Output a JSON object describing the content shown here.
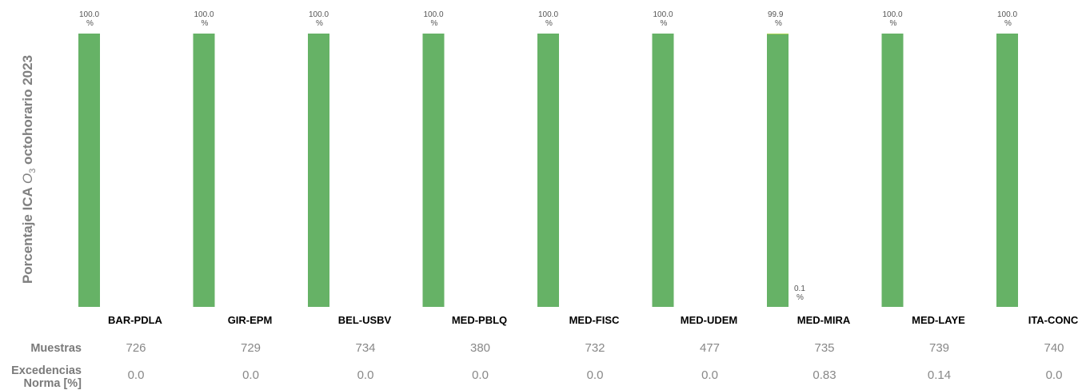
{
  "y_axis_label": {
    "prefix": "Porcentaje ICA ",
    "pollutant": "O",
    "subscript": "3",
    "suffix": " octohorario 2023"
  },
  "colors": {
    "bar": "#66b266",
    "label_text": "#555555",
    "category_text": "#000000",
    "stat_text": "#888888"
  },
  "chart_data": {
    "type": "bar",
    "categories": [
      "BAR-PDLA",
      "GIR-EPM",
      "BEL-USBV",
      "MED-PBLQ",
      "MED-FISC",
      "MED-UDEM",
      "MED-MIRA",
      "MED-LAYE",
      "ITA-CONC"
    ],
    "series": [
      {
        "color": "#66b266",
        "values": [
          100.0,
          100.0,
          100.0,
          100.0,
          100.0,
          100.0,
          99.9,
          100.0,
          100.0
        ]
      },
      {
        "color": "#ffff00",
        "values": [
          0,
          0,
          0,
          0,
          0,
          0,
          0.1,
          0,
          0
        ]
      }
    ],
    "value_labels": [
      [
        "100.0\n%",
        "100.0\n%",
        "100.0\n%",
        "100.0\n%",
        "100.0\n%",
        "100.0\n%",
        "99.9\n%",
        "100.0\n%",
        "100.0\n%"
      ],
      [
        null,
        null,
        null,
        null,
        null,
        null,
        "0.1\n%",
        null,
        null
      ]
    ],
    "ylim": [
      0,
      100
    ],
    "grid": false,
    "legend": "none"
  },
  "stats": {
    "muestras_label": "Muestras",
    "muestras": [
      "726",
      "729",
      "734",
      "380",
      "732",
      "477",
      "735",
      "739",
      "740"
    ],
    "excedencias_label_1": "Excedencias",
    "excedencias_label_2": "Norma [%]",
    "excedencias": [
      "0.0",
      "0.0",
      "0.0",
      "0.0",
      "0.0",
      "0.0",
      "0.83",
      "0.14",
      "0.0"
    ]
  }
}
